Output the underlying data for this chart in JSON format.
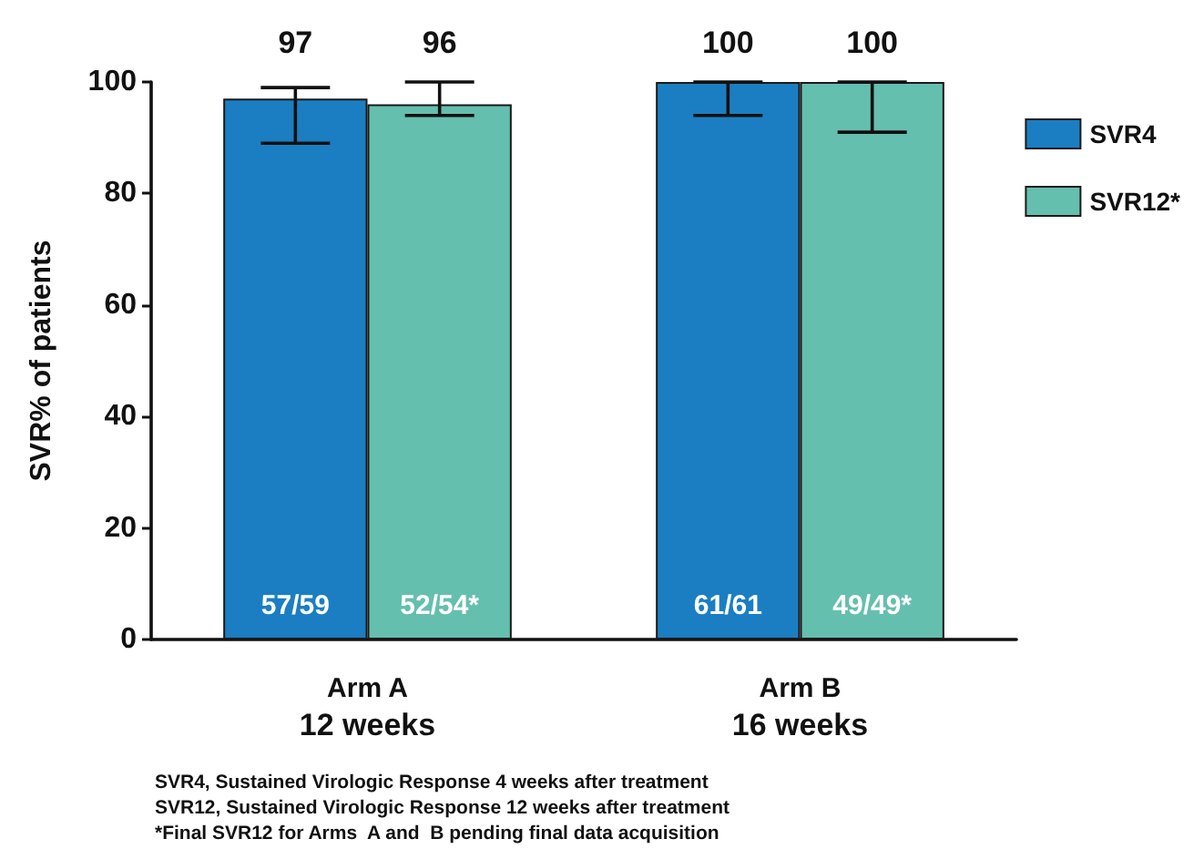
{
  "chart_data": {
    "type": "bar",
    "ylabel": "SVR% of patients",
    "categories": [
      "Arm A\n12 weeks",
      "Arm B\n16 weeks"
    ],
    "series": [
      {
        "name": "SVR4",
        "color": "#1b7ec2",
        "values": [
          97,
          100
        ],
        "errors": [
          [
            89,
            99
          ],
          [
            94,
            100
          ]
        ]
      },
      {
        "name": "SVR12*",
        "color": "#65bfae",
        "values": [
          96,
          100
        ],
        "errors": [
          [
            94,
            100
          ],
          [
            91,
            100
          ]
        ]
      }
    ],
    "ylim": [
      0,
      100
    ],
    "yticks": [
      0,
      20,
      40,
      60,
      80,
      100
    ],
    "data_labels": true,
    "legend": "top right",
    "annotations": [
      {
        "text": "57/59",
        "x": "Arm A\n12 weeks",
        "y": 6
      },
      {
        "text": "52/54*",
        "x": "Arm A\n12 weeks",
        "y": 6
      },
      {
        "text": "61/61",
        "x": "Arm B\n16 weeks",
        "y": 6
      },
      {
        "text": "49/49*",
        "x": "Arm B\n16 weeks",
        "y": 6
      },
      "SVR4, Sustained Virologic Response 4 weeks after treatment",
      "SVR12, Sustained Virologic Response 12 weeks after treatment",
      "*Final SVR12 for Arms  A and  B pending final data acquisition"
    ]
  }
}
